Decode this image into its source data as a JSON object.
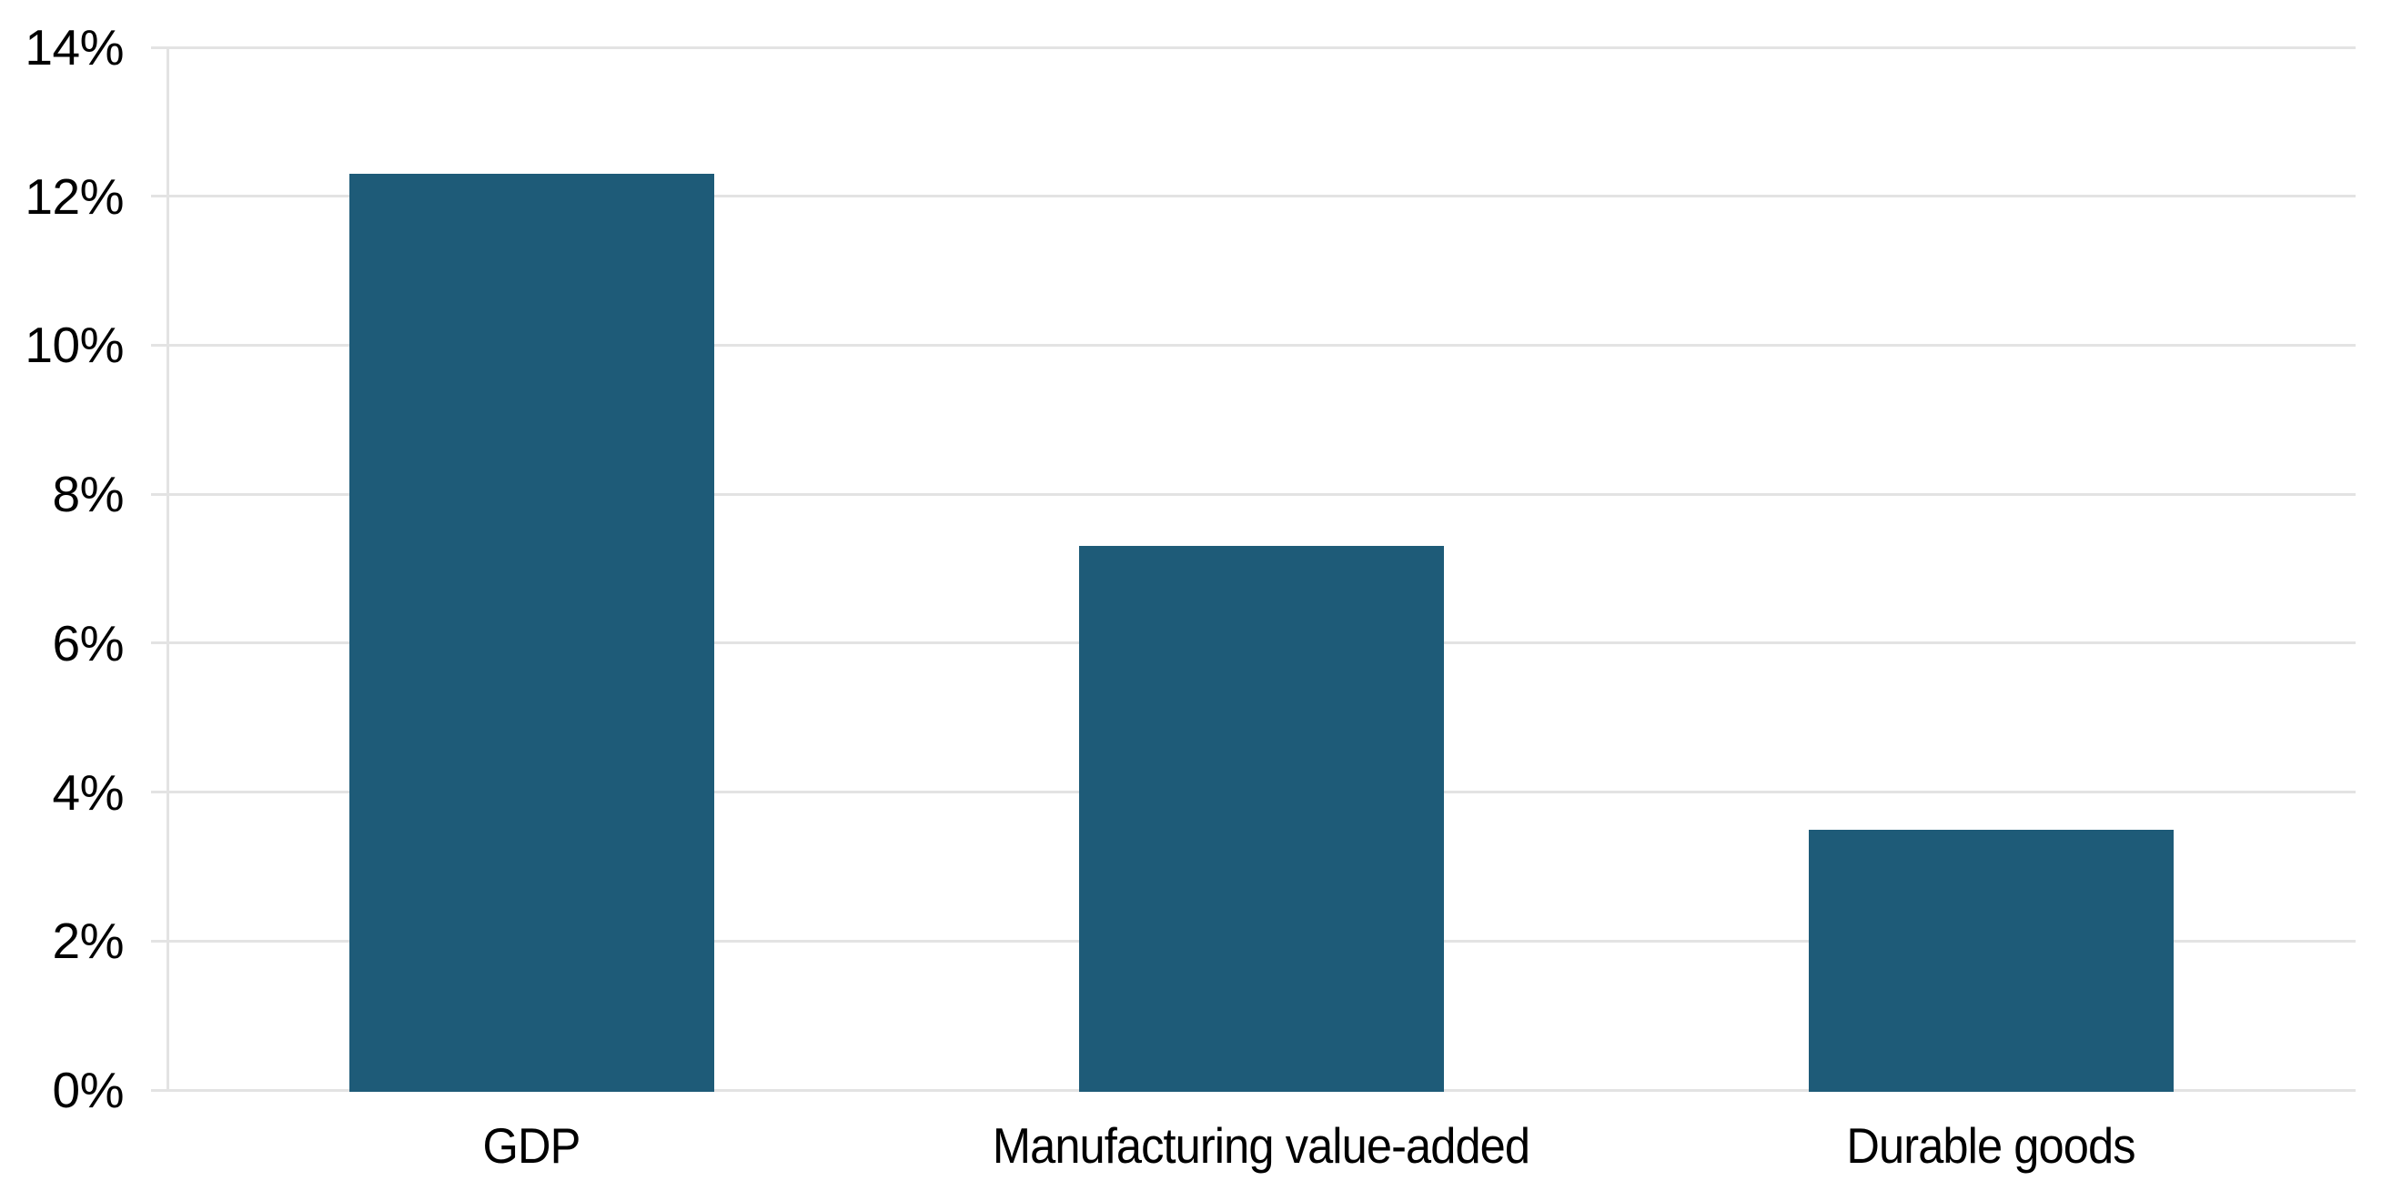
{
  "chart_data": {
    "type": "bar",
    "title": "",
    "xlabel": "",
    "ylabel": "",
    "categories": [
      "GDP",
      "Manufacturing value-added",
      "Durable goods"
    ],
    "values": [
      12.3,
      7.3,
      3.5
    ],
    "ylim": [
      0,
      14
    ],
    "ytick_step": 2,
    "ytick_labels": [
      "0%",
      "2%",
      "4%",
      "6%",
      "8%",
      "10%",
      "12%",
      "14%"
    ],
    "grid": "horizontal-only",
    "legend": "none",
    "colors": {
      "bar_fill": "#1e5b78",
      "gridline": "#e3e3e3",
      "axis_line": "#e3e3e3",
      "label_text": "#000000",
      "background": "#ffffff"
    }
  }
}
